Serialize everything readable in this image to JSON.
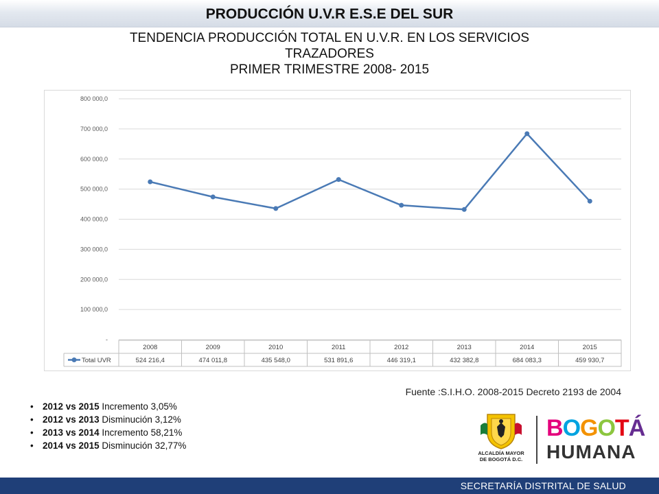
{
  "header": {
    "title": "PRODUCCIÓN  U.V.R  E.S.E DEL SUR"
  },
  "subtitle": {
    "line1": "TENDENCIA  PRODUCCIÓN TOTAL EN  U.V.R. EN LOS SERVICIOS",
    "line2": "TRAZADORES",
    "line3": "PRIMER TRIMESTRE 2008- 2015"
  },
  "chart_data": {
    "type": "line",
    "categories": [
      "2008",
      "2009",
      "2010",
      "2011",
      "2012",
      "2013",
      "2014",
      "2015"
    ],
    "series": [
      {
        "name": "Total UVR",
        "values": [
          524216.4,
          474011.8,
          435548.0,
          531891.6,
          446319.1,
          432382.8,
          684083.3,
          459930.7
        ],
        "labels": [
          "524 216,4",
          "474 011,8",
          "435 548,0",
          "531 891,6",
          "446 319,1",
          "432 382,8",
          "684 083,3",
          "459 930,7"
        ],
        "color": "#4a7ab5"
      }
    ],
    "yticks": [
      "-",
      "100 000,0",
      "200 000,0",
      "300 000,0",
      "400 000,0",
      "500 000,0",
      "600 000,0",
      "700 000,0",
      "800 000,0"
    ],
    "ylim": [
      0,
      800000
    ],
    "grid": true,
    "legend": "data-table"
  },
  "source": "Fuente :S.I.H.O. 2008-2015  Decreto 2193 de 2004",
  "notes": [
    {
      "bold": "2012 vs 2015",
      "text": "  Incremento 3,05%"
    },
    {
      "bold": "2012 vs 2013",
      "text": " Disminución 3,12%"
    },
    {
      "bold": "2013 vs 2014",
      "text": " Incremento 58,21%"
    },
    {
      "bold": "2014 vs 2015",
      "text": " Disminución 32,77%"
    }
  ],
  "logos": {
    "alcaldia_line1": "ALCALDÍA MAYOR",
    "alcaldia_line2": "DE BOGOTÁ D.C.",
    "bogota": "BOGOTÁ",
    "humana": "HUMANA"
  },
  "footer": {
    "text": "SECRETARÍA DISTRITAL DE SALUD"
  },
  "colors": {
    "footer": "#1f3f78",
    "line": "#4a7ab5",
    "grid": "#d9d9d9"
  }
}
